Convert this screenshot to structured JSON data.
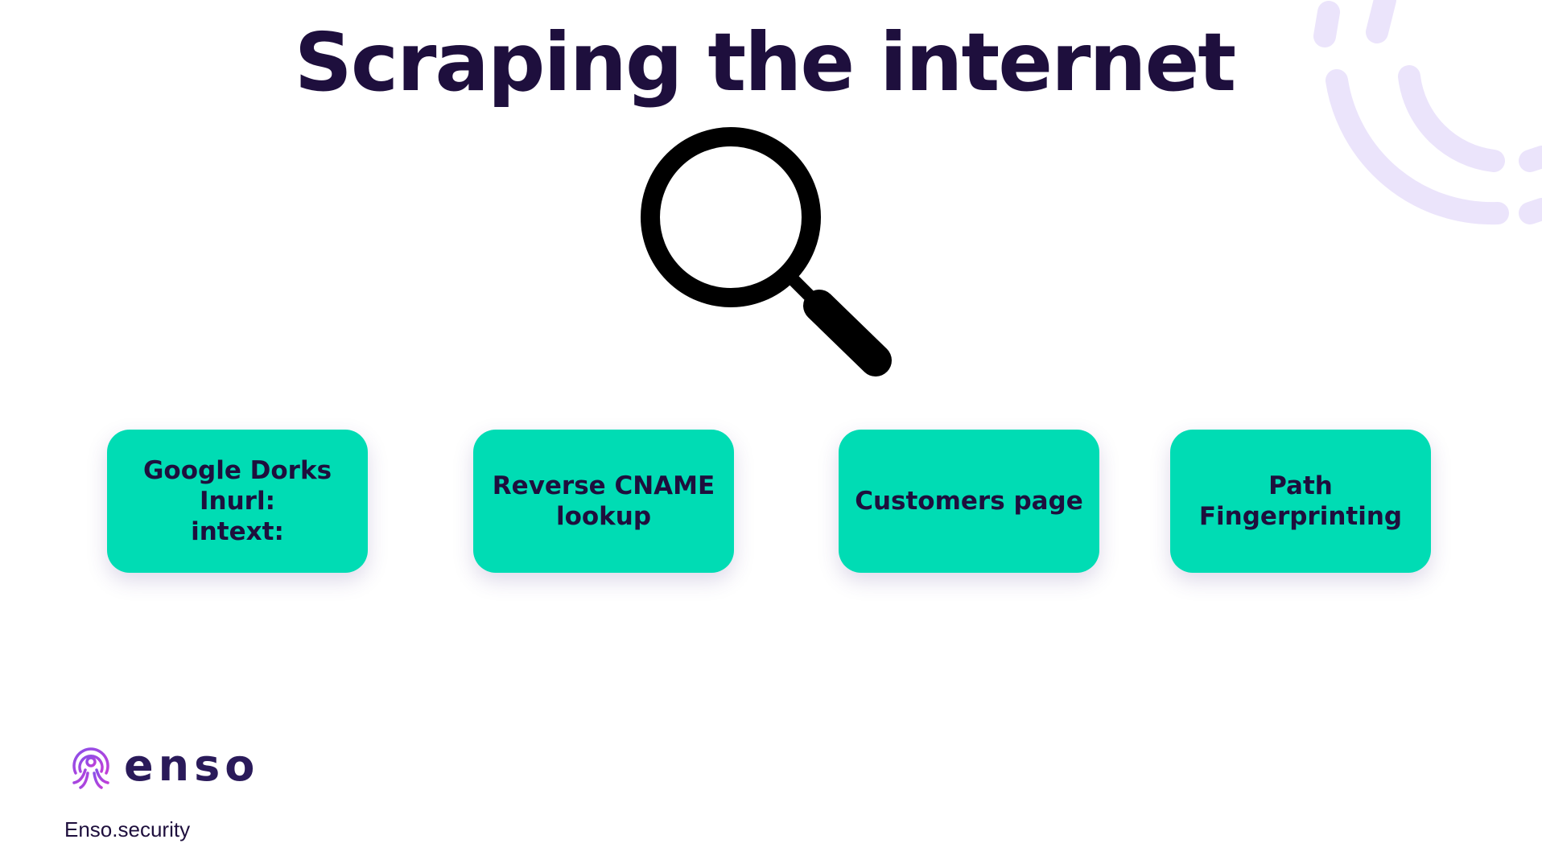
{
  "slide": {
    "title": "Scraping the internet",
    "cards": [
      {
        "lines": [
          "Google Dorks",
          "Inurl:",
          "intext:"
        ]
      },
      {
        "lines": [
          "Reverse CNAME",
          "lookup"
        ]
      },
      {
        "lines": [
          "Customers page"
        ]
      },
      {
        "lines": [
          "Path",
          "Fingerprinting"
        ]
      }
    ],
    "logo_text": "enso",
    "footer": "Enso.security"
  },
  "colors": {
    "title": "#1e0f3d",
    "card_background": "#00dcb4",
    "decoration": "#ebe4fb",
    "logo_purple": "#6a3fd8"
  },
  "icons": {
    "search": "magnifier-icon",
    "decoration": "concentric-arcs-decoration",
    "logo": "enso-octopus-logo-icon"
  }
}
